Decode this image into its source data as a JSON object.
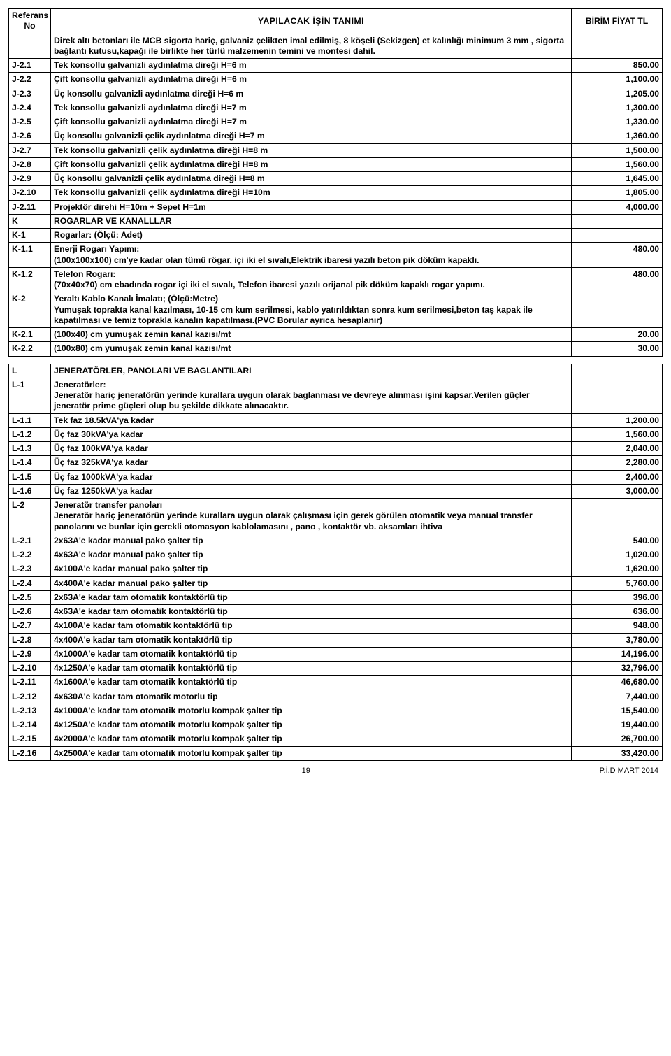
{
  "header": {
    "col1": "Referans No",
    "col2": "YAPILACAK    İŞİN      TANIMI",
    "col3": "BİRİM FİYAT TL"
  },
  "intro": "Direk altı betonları ile MCB sigorta hariç, galvaniz çelikten imal edilmiş, 8 köşeli (Sekizgen) et kalınlığı minimum 3 mm , sigorta bağlantı kutusu,kapağı ile birlikte her türlü malzemenin temini ve montesi dahil.",
  "rows1": [
    {
      "ref": "J-2.1",
      "desc": "Tek  konsollu galvanizli aydınlatma direği  H=6 m",
      "price": "850.00"
    },
    {
      "ref": "J-2.2",
      "desc": "Çift  konsollu galvanizli aydınlatma direği  H=6 m",
      "price": "1,100.00"
    },
    {
      "ref": "J-2.3",
      "desc": "Üç    konsollu galvanizli aydınlatma direği H=6 m",
      "price": "1,205.00"
    },
    {
      "ref": "J-2.4",
      "desc": "Tek  konsollu galvanizli aydınlatma direği  H=7 m",
      "price": "1,300.00"
    },
    {
      "ref": "J-2.5",
      "desc": "Çift  konsollu galvanizli aydınlatma direği  H=7 m",
      "price": "1,330.00"
    },
    {
      "ref": "J-2.6",
      "desc": "Üç    konsollu galvanizli çelik aydınlatma direği H=7 m",
      "price": "1,360.00"
    },
    {
      "ref": "J-2.7",
      "desc": "Tek  konsollu galvanizli çelik aydınlatma direği  H=8 m",
      "price": "1,500.00"
    },
    {
      "ref": "J-2.8",
      "desc": "Çift  konsollu galvanizli çelik aydınlatma direği  H=8 m",
      "price": "1,560.00"
    },
    {
      "ref": "J-2.9",
      "desc": "Üç    konsollu galvanizli çelik aydınlatma direği  H=8 m",
      "price": "1,645.00"
    },
    {
      "ref": "J-2.10",
      "desc": "Tek konsollu galvanizli çelik aydınlatma direği H=10m",
      "price": "1,805.00"
    },
    {
      "ref": "J-2.11",
      "desc": "Projektör direhi H=10m + Sepet H=1m",
      "price": "4,000.00"
    },
    {
      "ref": "K",
      "desc": "ROGARLAR VE KANALLLAR",
      "price": ""
    },
    {
      "ref": "K-1",
      "desc": "Rogarlar: (Ölçü: Adet)",
      "price": ""
    }
  ],
  "k11": {
    "ref": "K-1.1",
    "title": "Enerji Rogarı Yapımı:",
    "body": "(100x100x100) cm'ye kadar olan tümü rögar, içi iki el sıvalı,Elektrik ibaresi yazılı beton pik döküm kapaklı.",
    "price": "480.00"
  },
  "k12": {
    "ref": "K-1.2",
    "title": "Telefon Rogarı:",
    "body": "(70x40x70) cm ebadında rogar içi iki el sıvalı, Telefon ibaresi yazılı orijanal pik döküm kapaklı rogar yapımı.",
    "price": "480.00"
  },
  "k2": {
    "ref": "K-2",
    "title": "Yeraltı Kablo Kanalı İmalatı; (Ölçü:Metre)",
    "body": "Yumuşak toprakta  kanal kazılması, 10-15 cm kum serilmesi, kablo yatırıldıktan sonra kum serilmesi,beton taş kapak ile kapatılması ve temiz toprakla kanalın kapatılması.(PVC Borular ayrıca hesaplanır)"
  },
  "rows2": [
    {
      "ref": "K-2.1",
      "desc": "(100x40) cm yumuşak zemin kanal kazısı/mt",
      "price": "20.00"
    },
    {
      "ref": "K-2.2",
      "desc": "(100x80) cm yumuşak zemin kanal kazısı/mt",
      "price": "30.00"
    }
  ],
  "sectionL": {
    "ref": "L",
    "desc": "JENERATÖRLER,  PANOLARI VE BAGLANTILARI"
  },
  "l1": {
    "ref": "L-1",
    "title": "Jeneratörler:",
    "body": "Jeneratör hariç jeneratörün yerinde kurallara uygun olarak baglanması ve devreye alınması işini kapsar.Verilen güçler jeneratör prime güçleri olup bu şekilde dikkate alınacaktır."
  },
  "rows3": [
    {
      "ref": "L-1.1",
      "desc": "Tek faz 18.5kVA'ya kadar",
      "price": "1,200.00"
    },
    {
      "ref": "L-1.2",
      "desc": "Üç faz 30kVA'ya kadar",
      "price": "1,560.00"
    },
    {
      "ref": "L-1.3",
      "desc": "Üç faz 100kVA'ya kadar",
      "price": "2,040.00"
    },
    {
      "ref": "L-1.4",
      "desc": "Üç faz 325kVA'ya kadar",
      "price": "2,280.00"
    },
    {
      "ref": "L-1.5",
      "desc": "Üç faz 1000kVA'ya kadar",
      "price": "2,400.00"
    },
    {
      "ref": "L-1.6",
      "desc": "Üç faz 1250kVA'ya kadar",
      "price": "3,000.00"
    }
  ],
  "l2": {
    "ref": "L-2",
    "title": "Jeneratör transfer panoları",
    "body": "Jeneratör hariç jeneratörün yerinde kurallara uygun olarak çalışması için gerek görülen otomatik veya manual transfer panolarını  ve bunlar için gerekli otomasyon kablolamasını , pano , kontaktör vb. aksamları ihtiva"
  },
  "rows4": [
    {
      "ref": "L-2.1",
      "desc": "2x63A'e kadar manual pako şalter tip",
      "price": "540.00"
    },
    {
      "ref": "L-2.2",
      "desc": "4x63A'e kadar manual pako şalter tip",
      "price": "1,020.00"
    },
    {
      "ref": "L-2.3",
      "desc": "4x100A'e kadar manual pako şalter tip",
      "price": "1,620.00"
    },
    {
      "ref": "L-2.4",
      "desc": "4x400A'e kadar manual pako şalter tip",
      "price": "5,760.00"
    },
    {
      "ref": "L-2.5",
      "desc": "2x63A'e kadar tam otomatik kontaktörlü tip",
      "price": "396.00"
    },
    {
      "ref": "L-2.6",
      "desc": "4x63A'e kadar tam otomatik kontaktörlü tip",
      "price": "636.00"
    },
    {
      "ref": "L-2.7",
      "desc": "4x100A'e kadar tam otomatik kontaktörlü tip",
      "price": "948.00"
    },
    {
      "ref": "L-2.8",
      "desc": "4x400A'e kadar tam otomatik kontaktörlü tip",
      "price": "3,780.00"
    },
    {
      "ref": "L-2.9",
      "desc": "4x1000A'e kadar tam otomatik kontaktörlü tip",
      "price": "14,196.00"
    },
    {
      "ref": "L-2.10",
      "desc": "4x1250A'e kadar tam otomatik kontaktörlü tip",
      "price": "32,796.00"
    },
    {
      "ref": "L-2.11",
      "desc": "4x1600A'e kadar tam otomatik kontaktörlü tip",
      "price": "46,680.00"
    },
    {
      "ref": "L-2.12",
      "desc": "4x630A'e kadar tam otomatik motorlu tip",
      "price": "7,440.00"
    },
    {
      "ref": "L-2.13",
      "desc": "4x1000A'e kadar tam otomatik motorlu kompak şalter tip",
      "price": "15,540.00"
    },
    {
      "ref": "L-2.14",
      "desc": "4x1250A'e kadar tam otomatik motorlu kompak şalter tip",
      "price": "19,440.00"
    },
    {
      "ref": "L-2.15",
      "desc": "4x2000A'e kadar tam otomatik motorlu kompak şalter tip",
      "price": "26,700.00"
    },
    {
      "ref": "L-2.16",
      "desc": "4x2500A'e kadar tam otomatik motorlu kompak şalter tip",
      "price": "33,420.00"
    }
  ],
  "footer": {
    "page": "19",
    "right": "P.İ.D MART 2014"
  }
}
